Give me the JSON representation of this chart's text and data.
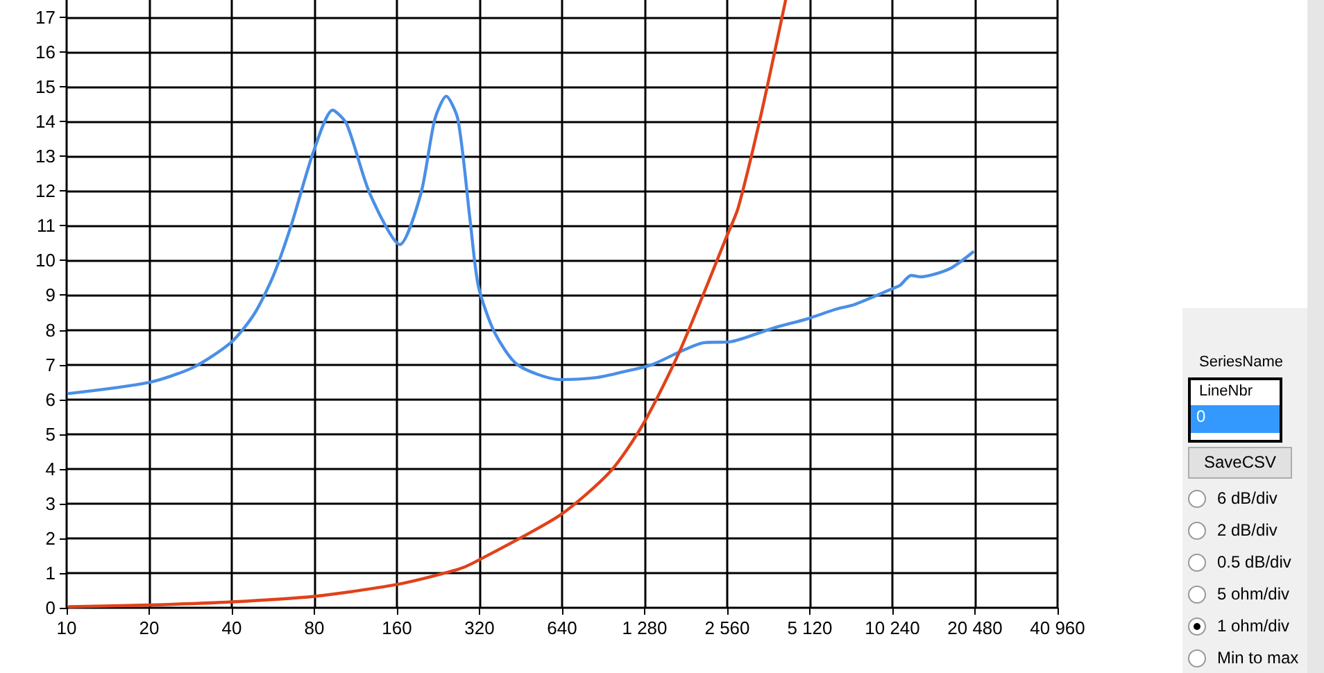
{
  "chart_data": {
    "type": "line",
    "xlim": [
      10,
      40960
    ],
    "xticks": [
      10,
      20,
      40,
      80,
      160,
      320,
      640,
      {
        "value": 1280,
        "label": "1 280"
      },
      {
        "value": 2560,
        "label": "2 560"
      },
      {
        "value": 5120,
        "label": "5 120"
      },
      {
        "value": 10240,
        "label": "10 240"
      },
      {
        "value": 20480,
        "label": "20 480"
      },
      {
        "value": 40960,
        "label": "40 960"
      }
    ],
    "log": "x",
    "ylim": [
      0,
      17.5
    ],
    "yticks": [
      0,
      1,
      2,
      3,
      4,
      5,
      6,
      7,
      8,
      9,
      10,
      11,
      12,
      13,
      14,
      15,
      16,
      17
    ],
    "grid": true,
    "marker": "none",
    "line_style": "solid",
    "series": [
      {
        "color": "#4a8fe6",
        "x": [
          10.2,
          20,
          29.1,
          40,
          48.3,
          56.5,
          65.8,
          79.4,
          93.3,
          104.9,
          127.4,
          164,
          195.7,
          219.8,
          242,
          267,
          296,
          317,
          363,
          440,
          630,
          857,
          1078,
          1361,
          1720,
          2090,
          2630,
          3720,
          5060,
          6390,
          7440,
          10330,
          10940,
          11980,
          12970,
          16540,
          20110
        ],
        "values": [
          6.17,
          6.49,
          6.93,
          7.66,
          8.46,
          9.53,
          11.0,
          13.13,
          14.33,
          13.93,
          11.93,
          10.46,
          11.93,
          14.06,
          14.73,
          14.06,
          11.13,
          9.26,
          7.93,
          7.0,
          6.57,
          6.63,
          6.8,
          7.0,
          7.37,
          7.63,
          7.66,
          8.04,
          8.33,
          8.6,
          8.73,
          9.2,
          9.29,
          9.57,
          9.53,
          9.76,
          10.24
        ]
      },
      {
        "color": "#e0421a",
        "x": [
          10.2,
          20,
          40,
          80,
          160,
          266,
          300,
          630,
          961,
          1260,
          1720,
          2560,
          2810,
          3400,
          4180
        ],
        "values": [
          0.03,
          0.08,
          0.17,
          0.33,
          0.67,
          1.1,
          1.27,
          2.67,
          3.93,
          5.27,
          7.4,
          10.73,
          11.53,
          14.2,
          17.5
        ]
      }
    ],
    "annotations": [
      "SeriesName",
      "LineNbr",
      "0",
      "SaveCSV",
      "6 dB/div",
      "2 dB/div",
      "0.5 dB/div",
      "5 ohm/div",
      "1 ohm/div",
      "Min to max"
    ]
  }
}
